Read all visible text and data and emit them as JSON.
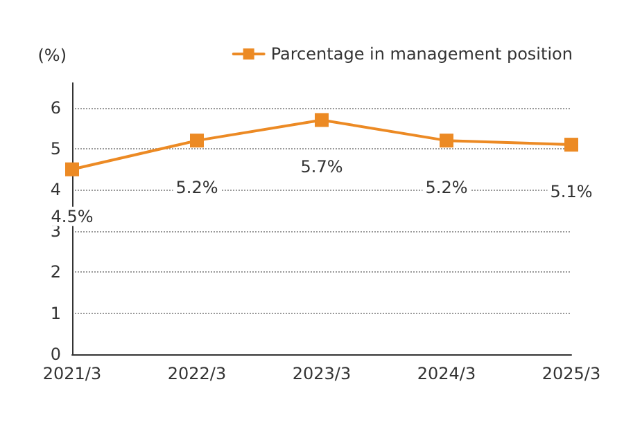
{
  "chart_data": {
    "type": "line",
    "ylabel": "(%)",
    "categories": [
      "2021/3",
      "2022/3",
      "2023/3",
      "2024/3",
      "2025/3"
    ],
    "series": [
      {
        "name": "Parcentage in management position",
        "color": "#ec8a24",
        "values": [
          4.5,
          5.2,
          5.7,
          5.2,
          5.1
        ],
        "value_labels": [
          "4.5%",
          "5.2%",
          "5.7%",
          "5.2%",
          "5.1%"
        ]
      }
    ],
    "ylim": [
      0,
      6.6
    ],
    "yticks": [
      0,
      1,
      2,
      3,
      4,
      5,
      6
    ],
    "grid": "y",
    "legend": "top right",
    "marker": "square",
    "line_style": "solid"
  }
}
